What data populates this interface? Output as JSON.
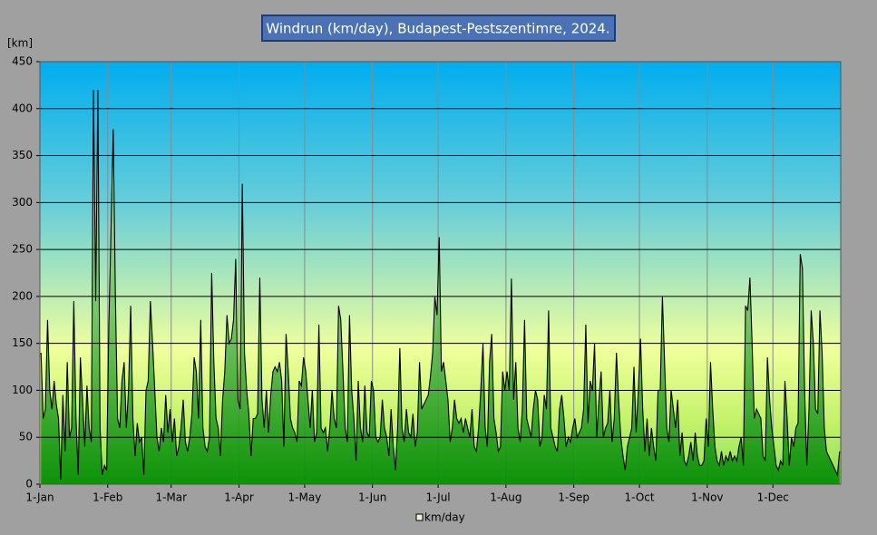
{
  "chart_data": {
    "type": "area",
    "title": "Windrun (km/day), Budapest-Pestszentimre,  2024.",
    "y_label": "[km]",
    "ylim": [
      0,
      450
    ],
    "yticks": [
      0,
      50,
      100,
      150,
      200,
      250,
      300,
      350,
      400,
      450
    ],
    "xlim": [
      0,
      366
    ],
    "xticks": [
      {
        "value": 0,
        "label": "1-Jan"
      },
      {
        "value": 31,
        "label": "1-Feb"
      },
      {
        "value": 60,
        "label": "1-Mar"
      },
      {
        "value": 91,
        "label": "1-Apr"
      },
      {
        "value": 121,
        "label": "1-May"
      },
      {
        "value": 152,
        "label": "1-Jun"
      },
      {
        "value": 182,
        "label": "1-Jul"
      },
      {
        "value": 213,
        "label": "1-Aug"
      },
      {
        "value": 244,
        "label": "1-Sep"
      },
      {
        "value": 274,
        "label": "1-Oct"
      },
      {
        "value": 305,
        "label": "1-Nov"
      },
      {
        "value": 335,
        "label": "1-Dec"
      }
    ],
    "grid": true,
    "legend": "bottom",
    "series": [
      {
        "name": "km/day",
        "color": "#000000",
        "values": [
          140,
          70,
          80,
          175,
          100,
          80,
          110,
          85,
          70,
          5,
          95,
          35,
          130,
          50,
          60,
          195,
          70,
          10,
          135,
          90,
          40,
          105,
          60,
          45,
          420,
          195,
          420,
          60,
          10,
          20,
          15,
          170,
          270,
          378,
          200,
          70,
          60,
          110,
          130,
          60,
          100,
          190,
          70,
          30,
          65,
          45,
          50,
          10,
          100,
          110,
          195,
          150,
          100,
          50,
          35,
          60,
          45,
          95,
          55,
          80,
          45,
          70,
          30,
          40,
          60,
          90,
          45,
          35,
          50,
          75,
          135,
          120,
          70,
          175,
          60,
          40,
          35,
          50,
          225,
          130,
          70,
          60,
          30,
          90,
          120,
          180,
          150,
          155,
          175,
          240,
          90,
          80,
          320,
          140,
          100,
          75,
          30,
          70,
          70,
          75,
          220,
          90,
          60,
          100,
          55,
          95,
          120,
          125,
          120,
          130,
          110,
          40,
          160,
          120,
          70,
          60,
          55,
          45,
          110,
          105,
          135,
          120,
          90,
          60,
          100,
          45,
          55,
          170,
          60,
          55,
          60,
          35,
          60,
          100,
          70,
          60,
          190,
          175,
          120,
          60,
          45,
          180,
          100,
          70,
          25,
          110,
          60,
          45,
          105,
          55,
          50,
          110,
          100,
          50,
          45,
          50,
          90,
          60,
          50,
          30,
          80,
          40,
          15,
          60,
          145,
          60,
          45,
          80,
          55,
          50,
          75,
          40,
          55,
          130,
          80,
          85,
          90,
          95,
          115,
          140,
          200,
          180,
          263,
          120,
          130,
          110,
          90,
          45,
          60,
          90,
          70,
          65,
          70,
          55,
          70,
          60,
          50,
          80,
          40,
          35,
          60,
          100,
          150,
          60,
          40,
          130,
          160,
          70,
          55,
          35,
          40,
          120,
          100,
          120,
          100,
          219,
          90,
          130,
          60,
          45,
          80,
          175,
          70,
          60,
          50,
          80,
          100,
          90,
          40,
          50,
          95,
          80,
          185,
          60,
          50,
          40,
          35,
          80,
          95,
          70,
          40,
          50,
          45,
          60,
          70,
          50,
          55,
          60,
          80,
          170,
          65,
          110,
          100,
          150,
          50,
          90,
          120,
          50,
          60,
          65,
          100,
          45,
          70,
          140,
          90,
          50,
          30,
          15,
          40,
          50,
          60,
          125,
          55,
          100,
          155,
          80,
          35,
          70,
          30,
          60,
          40,
          25,
          100,
          100,
          200,
          130,
          60,
          45,
          100,
          80,
          60,
          90,
          30,
          55,
          25,
          20,
          30,
          45,
          25,
          55,
          30,
          20,
          20,
          25,
          70,
          40,
          130,
          80,
          40,
          25,
          20,
          35,
          20,
          30,
          25,
          35,
          25,
          30,
          25,
          40,
          50,
          20,
          190,
          185,
          220,
          150,
          70,
          80,
          75,
          70,
          30,
          25,
          135,
          90,
          60,
          40,
          20,
          15,
          25,
          20,
          110,
          70,
          20,
          50,
          40,
          60,
          65,
          245,
          230,
          100,
          20,
          80,
          185,
          150,
          80,
          75,
          185,
          140,
          60,
          35,
          30,
          25,
          20,
          15,
          10,
          35
        ]
      }
    ]
  }
}
